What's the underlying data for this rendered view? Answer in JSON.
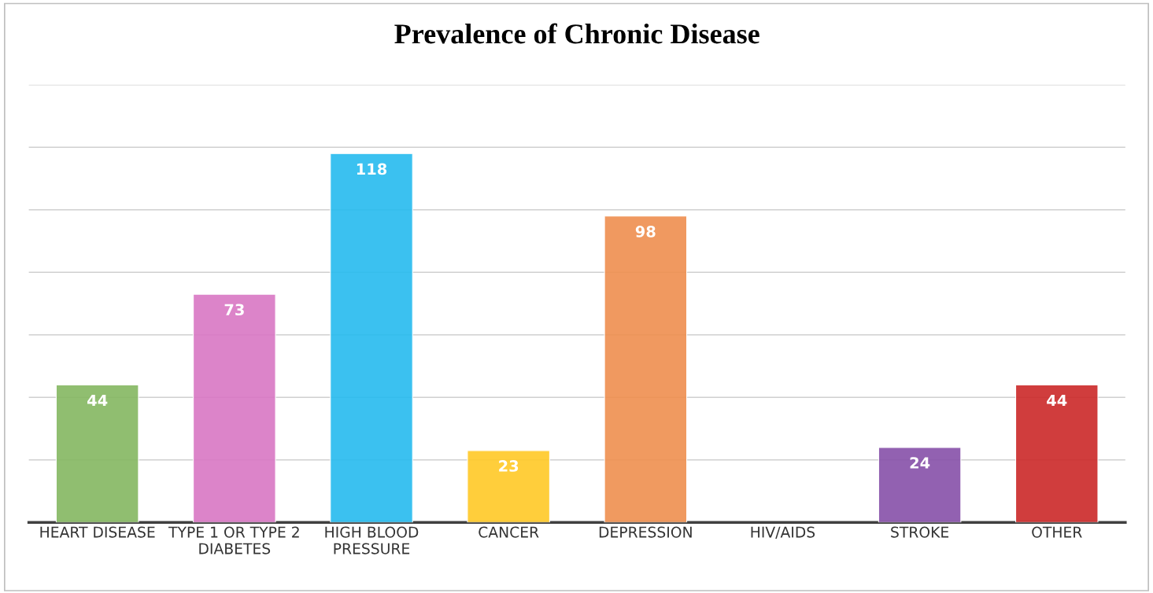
{
  "chart_data": {
    "type": "bar",
    "title": "Prevalence of Chronic Disease",
    "categories": [
      "HEART DISEASE",
      "TYPE 1 OR TYPE 2\nDIABETES",
      "HIGH BLOOD\nPRESSURE",
      "CANCER",
      "DEPRESSION",
      "HIV/AIDS",
      "STROKE",
      "OTHER"
    ],
    "values": [
      44,
      73,
      118,
      23,
      98,
      null,
      24,
      44
    ],
    "colors": [
      "#84b761",
      "#d977c4",
      "#26bbef",
      "#ffc926",
      "#ef8f4f",
      null,
      "#8750a9",
      "#cb2929"
    ],
    "ylim": [
      0,
      140
    ],
    "yticks": [
      {
        "value": 0,
        "label": null
      },
      {
        "value": 20,
        "label": null
      },
      {
        "value": 40,
        "label": null
      },
      {
        "value": 60,
        "label": null
      },
      {
        "value": 80,
        "label": null
      },
      {
        "value": 100,
        "label": null
      },
      {
        "value": 120,
        "label": null
      },
      {
        "value": 140,
        "label": null
      }
    ],
    "grid": "y",
    "tick_labels": "x",
    "data_labels": true
  }
}
